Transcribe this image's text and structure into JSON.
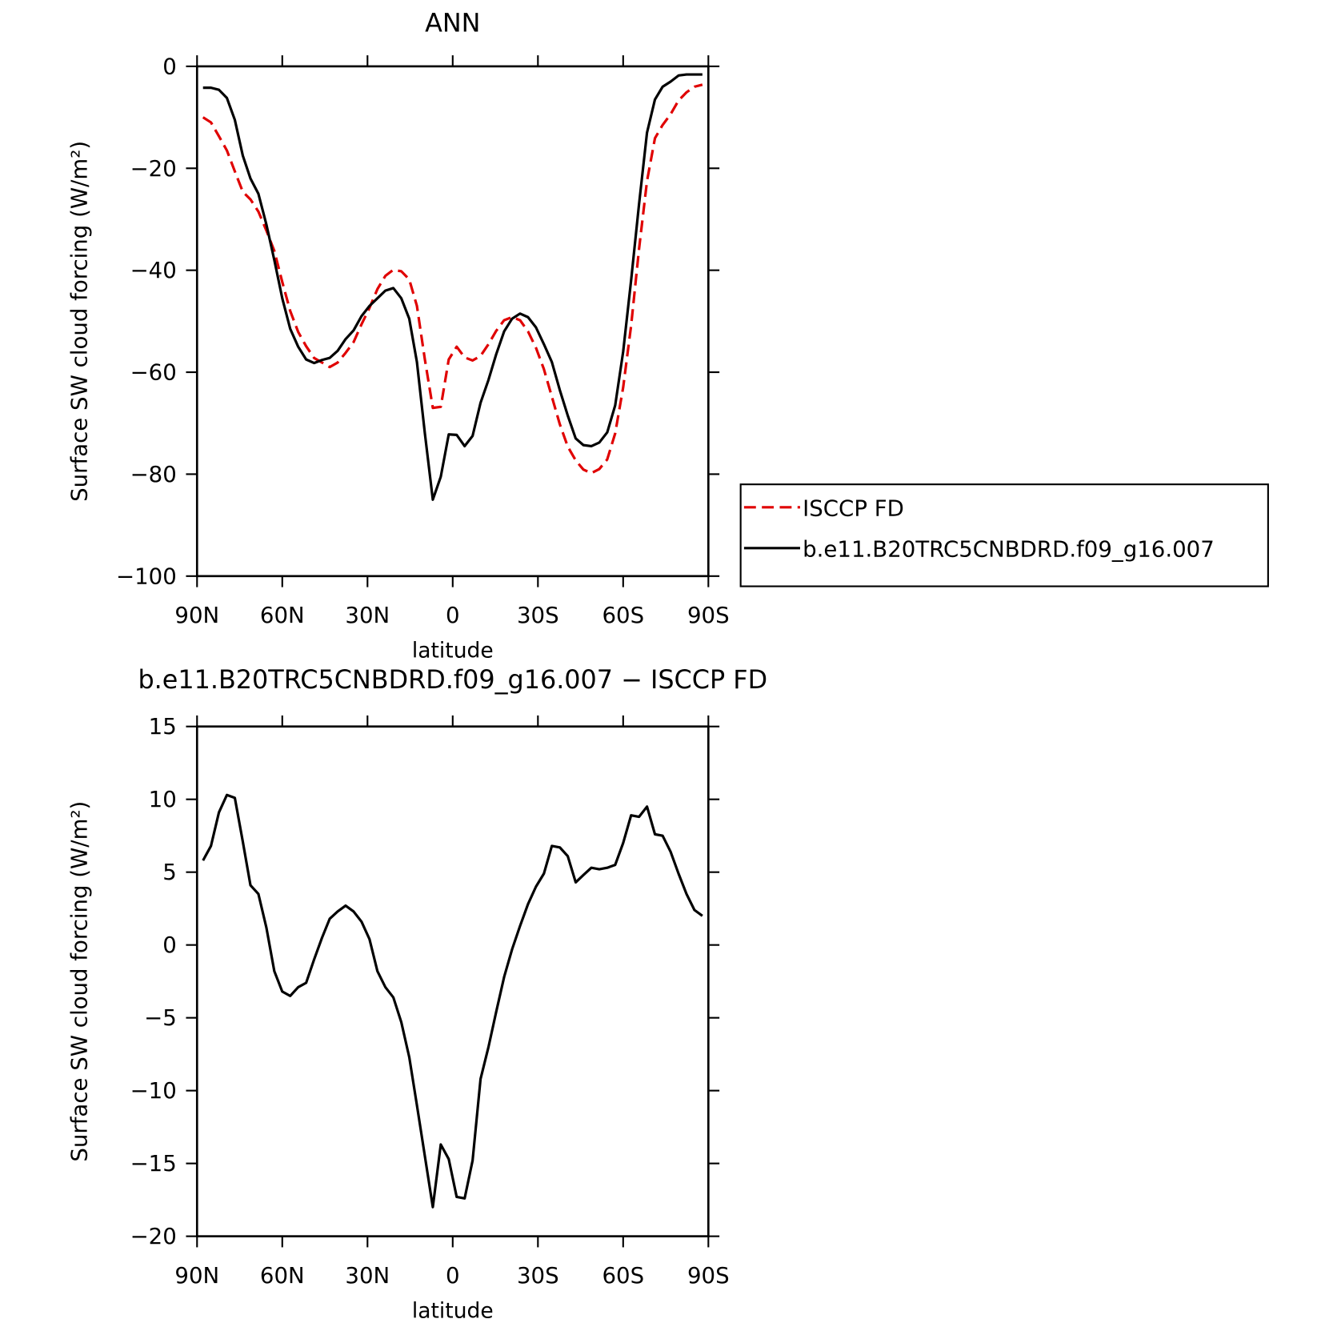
{
  "chart_data": [
    {
      "type": "line",
      "title": "ANN",
      "xlabel": "latitude",
      "ylabel": "Surface SW cloud forcing (W/m²)",
      "x": [
        87.9,
        85.1,
        82.3,
        79.5,
        76.7,
        73.9,
        71.2,
        68.4,
        65.6,
        62.8,
        60.0,
        57.2,
        54.4,
        51.6,
        48.8,
        46.0,
        43.3,
        40.5,
        37.7,
        34.9,
        32.1,
        29.3,
        26.5,
        23.7,
        20.9,
        18.1,
        15.3,
        12.6,
        9.8,
        7.0,
        4.2,
        1.4,
        -1.4,
        -4.2,
        -7.0,
        -9.8,
        -12.6,
        -15.3,
        -18.1,
        -20.9,
        -23.7,
        -26.5,
        -29.3,
        -32.1,
        -34.9,
        -37.7,
        -40.5,
        -43.3,
        -46.0,
        -48.8,
        -51.6,
        -54.4,
        -57.2,
        -60.0,
        -62.8,
        -65.6,
        -68.4,
        -71.2,
        -73.9,
        -76.7,
        -79.5,
        -82.3,
        -85.1,
        -87.9
      ],
      "series": [
        {
          "name": "ISCCP FD",
          "color": "#e00000",
          "dashed": true,
          "values": [
            -10,
            -11,
            -13.7,
            -16.5,
            -20.6,
            -24.6,
            -26.1,
            -28.5,
            -32.2,
            -36.2,
            -42.3,
            -48,
            -52.1,
            -54.9,
            -57.2,
            -58.1,
            -59,
            -58.1,
            -56.2,
            -54.1,
            -50.6,
            -47.4,
            -43.7,
            -41.1,
            -39.9,
            -40.2,
            -41.8,
            -47,
            -57.5,
            -67,
            -66.8,
            -57.5,
            -55,
            -57.1,
            -57.7,
            -56.8,
            -54.5,
            -51.9,
            -49.8,
            -49.2,
            -49.8,
            -52,
            -55.2,
            -59.4,
            -64.8,
            -70.2,
            -74.6,
            -77.3,
            -79.1,
            -79.8,
            -79,
            -77.1,
            -72,
            -63,
            -50.9,
            -35.8,
            -22.5,
            -14.1,
            -11.5,
            -9.4,
            -6.7,
            -5.1,
            -4,
            -3.6
          ]
        },
        {
          "name": "b.e11.B20TRC5CNBDRD.f09_g16.007",
          "color": "#000000",
          "dashed": false,
          "values": [
            -4.2,
            -4.2,
            -4.6,
            -6.2,
            -10.5,
            -17.5,
            -22,
            -25,
            -31,
            -38,
            -45.5,
            -51.5,
            -55,
            -57.5,
            -58.2,
            -57.6,
            -57.2,
            -55.8,
            -53.5,
            -51.8,
            -49,
            -47,
            -45.5,
            -44,
            -43.5,
            -45.5,
            -49.5,
            -58,
            -72,
            -85,
            -80.5,
            -72.2,
            -72.3,
            -74.5,
            -72.5,
            -66,
            -61.5,
            -56.5,
            -52,
            -49.5,
            -48.5,
            -49.2,
            -51.2,
            -54.5,
            -58,
            -63.5,
            -68.5,
            -73,
            -74.3,
            -74.5,
            -73.8,
            -71.8,
            -66.5,
            -56,
            -42,
            -27,
            -13,
            -6.5,
            -4,
            -3,
            -1.8,
            -1.6,
            -1.6,
            -1.6
          ]
        }
      ],
      "xlim": [
        90,
        -90
      ],
      "xticks": [
        {
          "value": 90,
          "label": "90N"
        },
        {
          "value": 60,
          "label": "60N"
        },
        {
          "value": 30,
          "label": "30N"
        },
        0,
        {
          "value": -30,
          "label": "30S"
        },
        {
          "value": -60,
          "label": "60S"
        },
        {
          "value": -90,
          "label": "90S"
        }
      ],
      "ylim": [
        -100,
        0
      ],
      "yticks": [
        {
          "value": -100,
          "label": "−100"
        },
        {
          "value": -80,
          "label": "−80"
        },
        {
          "value": -60,
          "label": "−60"
        },
        {
          "value": -40,
          "label": "−40"
        },
        {
          "value": -20,
          "label": "−20"
        },
        0
      ],
      "legend": "right"
    },
    {
      "type": "line",
      "title": "b.e11.B20TRC5CNBDRD.f09_g16.007 − ISCCP FD",
      "xlabel": "latitude",
      "ylabel": "Surface SW cloud forcing (W/m²)",
      "x": [
        87.9,
        85.1,
        82.3,
        79.5,
        76.7,
        73.9,
        71.2,
        68.4,
        65.6,
        62.8,
        60.0,
        57.2,
        54.4,
        51.6,
        48.8,
        46.0,
        43.3,
        40.5,
        37.7,
        34.9,
        32.1,
        29.3,
        26.5,
        23.7,
        20.9,
        18.1,
        15.3,
        12.6,
        9.8,
        7.0,
        4.2,
        1.4,
        -1.4,
        -4.2,
        -7.0,
        -9.8,
        -12.6,
        -15.3,
        -18.1,
        -20.9,
        -23.7,
        -26.5,
        -29.3,
        -32.1,
        -34.9,
        -37.7,
        -40.5,
        -43.3,
        -46.0,
        -48.8,
        -51.6,
        -54.4,
        -57.2,
        -60.0,
        -62.8,
        -65.6,
        -68.4,
        -71.2,
        -73.9,
        -76.7,
        -79.5,
        -82.3,
        -85.1,
        -87.9
      ],
      "series": [
        {
          "color": "#000000",
          "dashed": false,
          "values": [
            5.8,
            6.8,
            9.1,
            10.3,
            10.1,
            7.1,
            4.1,
            3.5,
            1.2,
            -1.8,
            -3.2,
            -3.5,
            -2.9,
            -2.6,
            -1.0,
            0.5,
            1.8,
            2.3,
            2.7,
            2.3,
            1.6,
            0.4,
            -1.8,
            -2.9,
            -3.6,
            -5.3,
            -7.7,
            -11.0,
            -14.5,
            -18.0,
            -13.7,
            -14.7,
            -17.3,
            -17.4,
            -14.8,
            -9.2,
            -7.0,
            -4.6,
            -2.2,
            -0.3,
            1.3,
            2.8,
            4.0,
            4.9,
            6.8,
            6.7,
            6.1,
            4.3,
            4.8,
            5.3,
            5.2,
            5.3,
            5.5,
            7.0,
            8.9,
            8.8,
            9.5,
            7.6,
            7.5,
            6.4,
            4.9,
            3.5,
            2.4,
            2.0
          ]
        }
      ],
      "xlim": [
        90,
        -90
      ],
      "xticks": [
        {
          "value": 90,
          "label": "90N"
        },
        {
          "value": 60,
          "label": "60N"
        },
        {
          "value": 30,
          "label": "30N"
        },
        0,
        {
          "value": -30,
          "label": "30S"
        },
        {
          "value": -60,
          "label": "60S"
        },
        {
          "value": -90,
          "label": "90S"
        }
      ],
      "ylim": [
        -20,
        15
      ],
      "yticks": [
        {
          "value": -20,
          "label": "−20"
        },
        {
          "value": -15,
          "label": "−15"
        },
        {
          "value": -10,
          "label": "−10"
        },
        {
          "value": -5,
          "label": "−5"
        },
        0,
        5,
        10,
        15
      ]
    }
  ]
}
